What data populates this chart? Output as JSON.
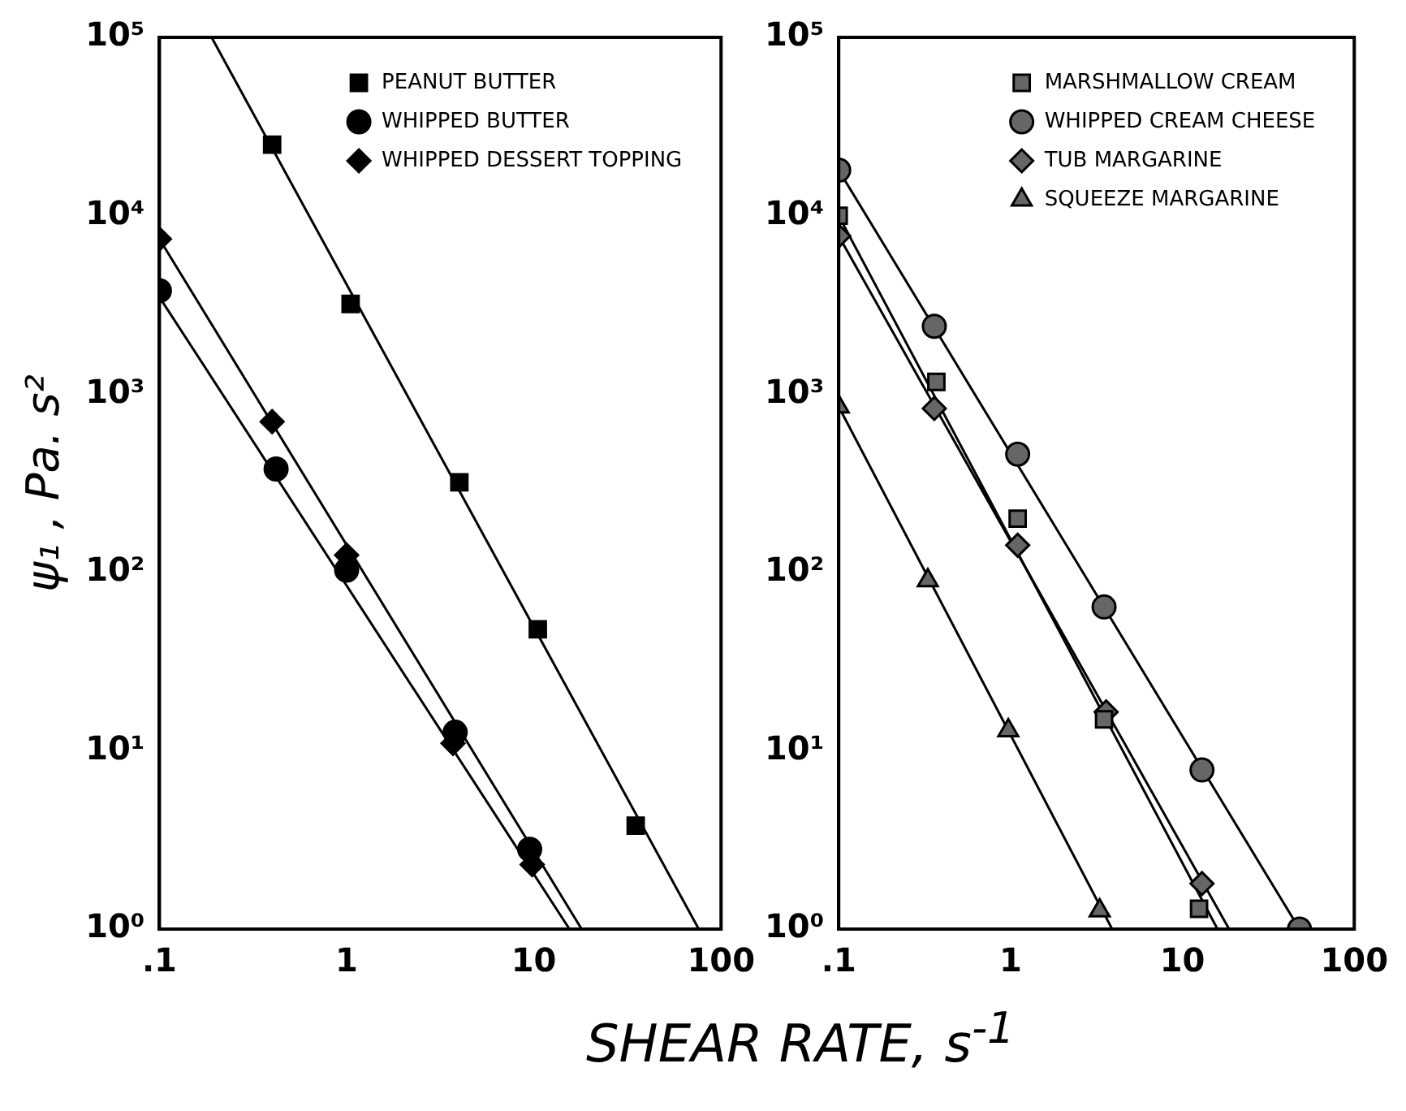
{
  "chart_data": [
    {
      "type": "scatter",
      "ylabel": "ψ₁ , Pa. s²",
      "xlabel": "SHEAR RATE, s$^{-1}$",
      "log": "xy",
      "grid": false,
      "legend": "top right",
      "xlim": [
        0.1,
        100
      ],
      "ylim": [
        1,
        100000
      ],
      "xticks": [
        {
          "value": 0.1,
          "label": ".1"
        },
        1,
        10,
        100
      ],
      "yticks": [
        {
          "value": 1,
          "label": "10⁰"
        },
        {
          "value": 10,
          "label": "10¹"
        },
        {
          "value": 100,
          "label": "10²"
        },
        {
          "value": 1000,
          "label": "10³"
        },
        {
          "value": 10000,
          "label": "10⁴"
        },
        {
          "value": 100000,
          "label": "10⁵"
        }
      ],
      "series": [
        {
          "name": "PEANUT BUTTER",
          "type": "scatter",
          "marker": "square",
          "color": "#000000",
          "x": [
            0.4,
            1.05,
            4,
            10.5,
            35
          ],
          "values": [
            25000,
            3200,
            320,
            48,
            3.8
          ]
        },
        {
          "name": "WHIPPED BUTTER",
          "type": "scatter",
          "marker": "circle",
          "color": "#000000",
          "x": [
            0.1,
            0.42,
            1,
            3.8,
            9.5
          ],
          "values": [
            3800,
            380,
            103,
            12.7,
            2.8
          ]
        },
        {
          "name": "WHIPPED DESSERT TOPPING",
          "type": "scatter",
          "marker": "diamond",
          "color": "#000000",
          "x": [
            0.1,
            0.4,
            1,
            3.7,
            9.8
          ],
          "values": [
            7400,
            700,
            125,
            11,
            2.3
          ]
        },
        {
          "type": "line",
          "marker": "none",
          "color": "#000000",
          "x": [
            0.19,
            76
          ],
          "values": [
            100000,
            1
          ]
        },
        {
          "type": "line",
          "marker": "none",
          "color": "#000000",
          "x": [
            0.1,
            15.5
          ],
          "values": [
            3500,
            1
          ]
        },
        {
          "type": "line",
          "marker": "none",
          "color": "#000000",
          "x": [
            0.1,
            18
          ],
          "values": [
            7400,
            1
          ]
        }
      ]
    },
    {
      "type": "scatter",
      "log": "xy",
      "grid": false,
      "legend": "top right",
      "xlim": [
        0.1,
        100
      ],
      "ylim": [
        1,
        100000
      ],
      "xticks": [
        {
          "value": 0.1,
          "label": ".1"
        },
        1,
        10,
        100
      ],
      "yticks": [
        {
          "value": 1,
          "label": "10⁰"
        },
        {
          "value": 10,
          "label": "10¹"
        },
        {
          "value": 100,
          "label": "10²"
        },
        {
          "value": 1000,
          "label": "10³"
        },
        {
          "value": 10000,
          "label": "10⁴"
        },
        {
          "value": 100000,
          "label": "10⁵"
        }
      ],
      "series": [
        {
          "name": "MARSHMALLOW CREAM",
          "type": "scatter",
          "marker": "square",
          "color": "#666666",
          "x": [
            0.1,
            0.37,
            1.1,
            3.5,
            12.5
          ],
          "values": [
            10000,
            1170,
            200,
            15,
            1.3
          ]
        },
        {
          "name": "WHIPPED CREAM CHEESE",
          "type": "scatter",
          "marker": "circle",
          "color": "#666666",
          "x": [
            0.1,
            0.36,
            1.1,
            3.5,
            13,
            48
          ],
          "values": [
            18000,
            2400,
            460,
            64,
            7.8,
            1
          ]
        },
        {
          "name": "TUB MARGARINE",
          "type": "scatter",
          "marker": "diamond",
          "color": "#666666",
          "x": [
            0.1,
            0.36,
            1.1,
            3.6,
            13
          ],
          "values": [
            7700,
            830,
            142,
            16.5,
            1.8
          ]
        },
        {
          "name": "SQUEEZE MARGARINE",
          "type": "scatter",
          "marker": "triangle",
          "color": "#666666",
          "x": [
            0.1,
            0.33,
            0.97,
            3.3
          ],
          "values": [
            850,
            90,
            13,
            1.27
          ]
        },
        {
          "type": "line",
          "marker": "none",
          "color": "#000000",
          "x": [
            0.1,
            48
          ],
          "values": [
            18000,
            1
          ]
        },
        {
          "type": "line",
          "marker": "none",
          "color": "#000000",
          "x": [
            0.1,
            16
          ],
          "values": [
            10000,
            1
          ]
        },
        {
          "type": "line",
          "marker": "none",
          "color": "#000000",
          "x": [
            0.1,
            18.7
          ],
          "values": [
            7700,
            1
          ]
        },
        {
          "type": "line",
          "marker": "none",
          "color": "#000000",
          "x": [
            0.1,
            3.9
          ],
          "values": [
            850,
            1
          ]
        }
      ]
    }
  ]
}
